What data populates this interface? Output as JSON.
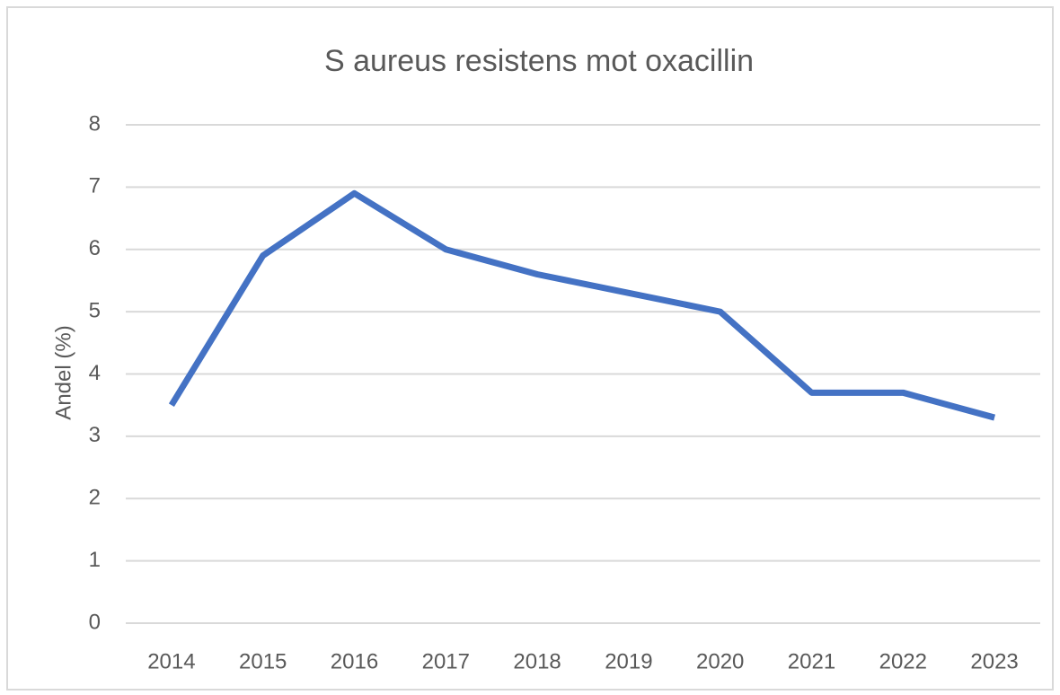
{
  "chart_data": {
    "type": "line",
    "title": "S aureus resistens mot oxacillin",
    "y_label": "Andel (%)",
    "categories": [
      "2014",
      "2015",
      "2016",
      "2017",
      "2018",
      "2019",
      "2020",
      "2021",
      "2022",
      "2023"
    ],
    "values": [
      3.5,
      5.9,
      6.9,
      6.0,
      5.6,
      5.3,
      5.0,
      3.7,
      3.7,
      3.3
    ],
    "color": "#4472c4",
    "ylim": [
      0,
      8
    ],
    "yticks": [
      0,
      1,
      2,
      3,
      4,
      5,
      6,
      7,
      8
    ],
    "grid": true
  }
}
